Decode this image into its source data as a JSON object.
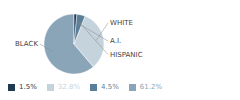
{
  "chart_data": {
    "type": "pie",
    "categories": [
      "BLACK",
      "WHITE",
      "HISPANIC",
      "A.I."
    ],
    "values": [
      61.2,
      32.8,
      4.5,
      1.5
    ],
    "value_labels": [
      "61.2%",
      "32.8%",
      "4.5%",
      "1.5%"
    ],
    "colors": [
      "#8aa4b8",
      "#c5d3dc",
      "#5b7f99",
      "#1e3a52"
    ],
    "legend": "lower left"
  }
}
